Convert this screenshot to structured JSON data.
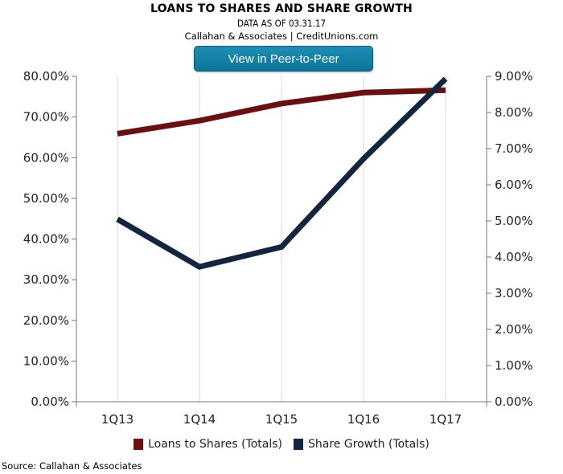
{
  "header": {
    "title": "LOANS TO SHARES AND SHARE GROWTH",
    "subtitle_date": "DATA AS OF 03.31.17",
    "subtitle_source": "Callahan & Associates | CreditUnions.com",
    "button_label": "View in Peer-to-Peer"
  },
  "footer": {
    "source": "Source: Callahan & Associates"
  },
  "chart_data": {
    "type": "line",
    "categories": [
      "1Q13",
      "1Q14",
      "1Q15",
      "1Q16",
      "1Q17"
    ],
    "series": [
      {
        "name": "Loans to Shares (Totals)",
        "axis": "left",
        "color": "#6b0f0f",
        "values": [
          65.9,
          69.1,
          73.3,
          76.0,
          76.6
        ]
      },
      {
        "name": "Share Growth (Totals)",
        "axis": "right",
        "color": "#14263f",
        "values": [
          5.05,
          3.73,
          4.28,
          6.72,
          8.93
        ]
      }
    ],
    "y_left": {
      "min": 0,
      "max": 80,
      "step": 10,
      "tick_labels": [
        "0.00%",
        "10.00%",
        "20.00%",
        "30.00%",
        "40.00%",
        "50.00%",
        "60.00%",
        "70.00%",
        "80.00%"
      ]
    },
    "y_right": {
      "min": 0,
      "max": 9,
      "step": 1,
      "tick_labels": [
        "0.00%",
        "1.00%",
        "2.00%",
        "3.00%",
        "4.00%",
        "5.00%",
        "6.00%",
        "7.00%",
        "8.00%",
        "9.00%"
      ]
    },
    "grid": "vertical",
    "legend_position": "bottom"
  }
}
